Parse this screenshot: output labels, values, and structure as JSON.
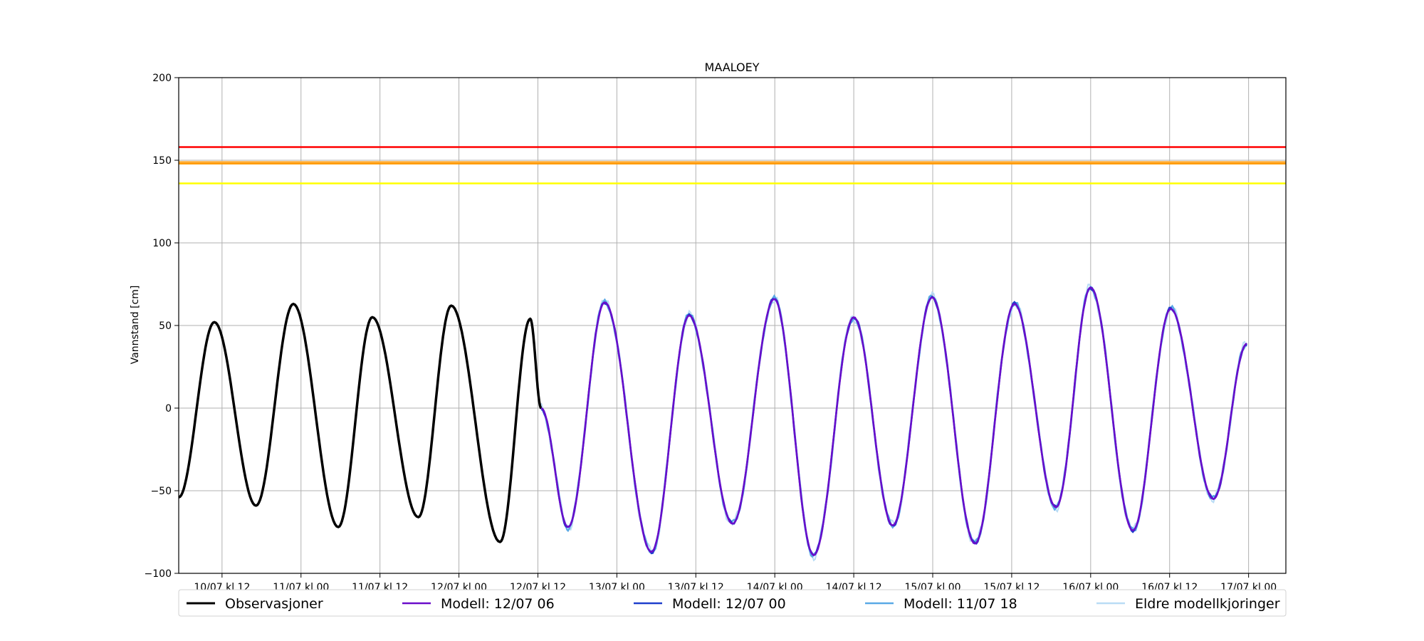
{
  "chart_data": {
    "type": "line",
    "title": "MAALOEY",
    "xlabel": "",
    "ylabel": "Vannstand [cm]",
    "ylim": [
      -100,
      200
    ],
    "xlim": [
      "2024-07-10 05:25",
      "2024-07-17 05:40"
    ],
    "grid": true,
    "legend_position": "bottom",
    "x_ticks": [
      "10/07 kl 12",
      "11/07 kl 00",
      "11/07 kl 12",
      "12/07 kl 00",
      "12/07 kl 12",
      "13/07 kl 00",
      "13/07 kl 12",
      "14/07 kl 00",
      "14/07 kl 12",
      "15/07 kl 00",
      "15/07 kl 12",
      "16/07 kl 00",
      "16/07 kl 12",
      "17/07 kl 00"
    ],
    "y_ticks": [
      -100,
      -50,
      0,
      50,
      100,
      150,
      200
    ],
    "thresholds": [
      {
        "value": 158,
        "color": "#ff0000"
      },
      {
        "value": 149,
        "color": "#ffb347"
      },
      {
        "value": 148,
        "color": "#ff9900"
      },
      {
        "value": 136,
        "color": "#ffff00"
      }
    ],
    "tide_extrema": {
      "observations": [
        {
          "t": "2024-07-10 05:25",
          "v": -54
        },
        {
          "t": "2024-07-10 10:50",
          "v": 52
        },
        {
          "t": "2024-07-10 17:10",
          "v": -59
        },
        {
          "t": "2024-07-10 22:50",
          "v": 63
        },
        {
          "t": "2024-07-11 05:40",
          "v": -72
        },
        {
          "t": "2024-07-11 10:50",
          "v": 55
        },
        {
          "t": "2024-07-11 17:50",
          "v": -66
        },
        {
          "t": "2024-07-11 22:50",
          "v": 62
        },
        {
          "t": "2024-07-12 06:15",
          "v": -81
        },
        {
          "t": "2024-07-12 10:50",
          "v": 54
        },
        {
          "t": "2024-07-12 12:30",
          "v": 0
        }
      ],
      "models": [
        {
          "t": "2024-07-12 12:30",
          "v": 0
        },
        {
          "t": "2024-07-12 16:35",
          "v": -72
        },
        {
          "t": "2024-07-12 22:10",
          "v": 64
        },
        {
          "t": "2024-07-13 05:15",
          "v": -87
        },
        {
          "t": "2024-07-13 11:00",
          "v": 56
        },
        {
          "t": "2024-07-13 17:35",
          "v": -70
        },
        {
          "t": "2024-07-13 23:55",
          "v": 66
        },
        {
          "t": "2024-07-14 05:55",
          "v": -89
        },
        {
          "t": "2024-07-14 12:00",
          "v": 55
        },
        {
          "t": "2024-07-14 17:55",
          "v": -71
        },
        {
          "t": "2024-07-14 23:55",
          "v": 67
        },
        {
          "t": "2024-07-15 06:25",
          "v": -82
        },
        {
          "t": "2024-07-15 12:25",
          "v": 63
        },
        {
          "t": "2024-07-15 18:45",
          "v": -60
        },
        {
          "t": "2024-07-16 00:00",
          "v": 73
        },
        {
          "t": "2024-07-16 06:25",
          "v": -74
        },
        {
          "t": "2024-07-16 12:10",
          "v": 60
        },
        {
          "t": "2024-07-16 18:40",
          "v": -55
        },
        {
          "t": "2024-07-16 23:45",
          "v": 39
        }
      ]
    },
    "series": [
      {
        "name": "Observasjoner",
        "color": "#000000"
      },
      {
        "name": "Modell: 12/07 06",
        "color": "#6a0dca"
      },
      {
        "name": "Modell: 12/07 00",
        "color": "#1f3fcc"
      },
      {
        "name": "Modell: 11/07 18",
        "color": "#5aa9e6"
      },
      {
        "name": "Eldre modellkjoringer",
        "color": "#b9dcf5"
      }
    ]
  }
}
